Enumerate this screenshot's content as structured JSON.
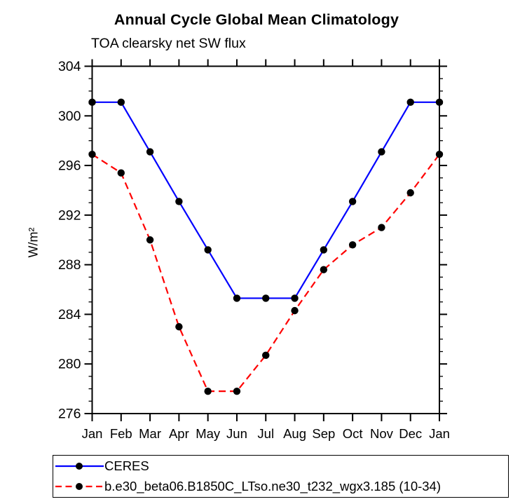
{
  "chart_data": {
    "type": "line",
    "title": "Annual Cycle Global Mean Climatology",
    "subtitle": "TOA clearsky net SW flux",
    "ylabel": "W/m²",
    "xlabel": "",
    "x_categories": [
      "Jan",
      "Feb",
      "Mar",
      "Apr",
      "May",
      "Jun",
      "Jul",
      "Aug",
      "Sep",
      "Oct",
      "Nov",
      "Dec",
      "Jan"
    ],
    "ylim": [
      276,
      304
    ],
    "y_major_ticks": [
      276,
      280,
      284,
      288,
      292,
      296,
      300,
      304
    ],
    "y_minor_step": 1,
    "grid": false,
    "legend_position": "bottom-left, boxed",
    "frame_color": "#000000",
    "marker_shape": "filled-circle",
    "series": [
      {
        "id": "ceres",
        "name": "CERES",
        "color": "#0000ff",
        "line_style": "solid",
        "marker_color": "#000000",
        "values": [
          301.1,
          301.1,
          297.1,
          293.1,
          289.2,
          285.3,
          285.3,
          285.3,
          289.2,
          293.1,
          297.1,
          301.1,
          301.1
        ]
      },
      {
        "id": "model",
        "name": "b.e30_beta06.B1850C_LTso.ne30_t232_wgx3.185 (10-34)",
        "color": "#ff0000",
        "line_style": "dashed",
        "marker_color": "#000000",
        "values": [
          296.9,
          295.4,
          290.0,
          283.0,
          277.8,
          277.8,
          280.7,
          284.3,
          287.6,
          289.6,
          291.0,
          293.8,
          296.9
        ]
      }
    ]
  }
}
